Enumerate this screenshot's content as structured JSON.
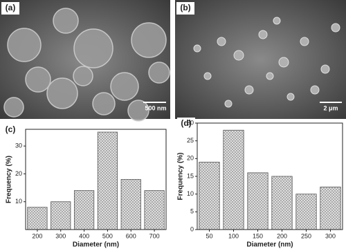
{
  "images": [
    {
      "label": "(a)",
      "scale_bar": "500 nm"
    },
    {
      "label": "(b)",
      "scale_bar": "2 μm"
    }
  ],
  "chart_data": [
    {
      "type": "bar",
      "panel": "(c)",
      "categories": [
        "200",
        "300",
        "400",
        "500",
        "600",
        "700"
      ],
      "values": [
        8,
        10,
        14,
        35,
        18,
        14
      ],
      "ylim": [
        0,
        36
      ],
      "yticks": [
        10,
        20,
        30
      ],
      "xlabel": "Diameter (nm)",
      "ylabel": "Frequency (%)",
      "color": "#bdbdbd"
    },
    {
      "type": "bar",
      "panel": "(d)",
      "categories": [
        "50",
        "100",
        "150",
        "200",
        "250",
        "300"
      ],
      "values": [
        19,
        28,
        16,
        15,
        10,
        12
      ],
      "ylim": [
        0,
        30
      ],
      "yticks": [
        0,
        5,
        10,
        15,
        20,
        25,
        30
      ],
      "xlabel": "Diameter (nm)",
      "ylabel": "Frequency (%)",
      "color": "#bdbdbd"
    }
  ]
}
